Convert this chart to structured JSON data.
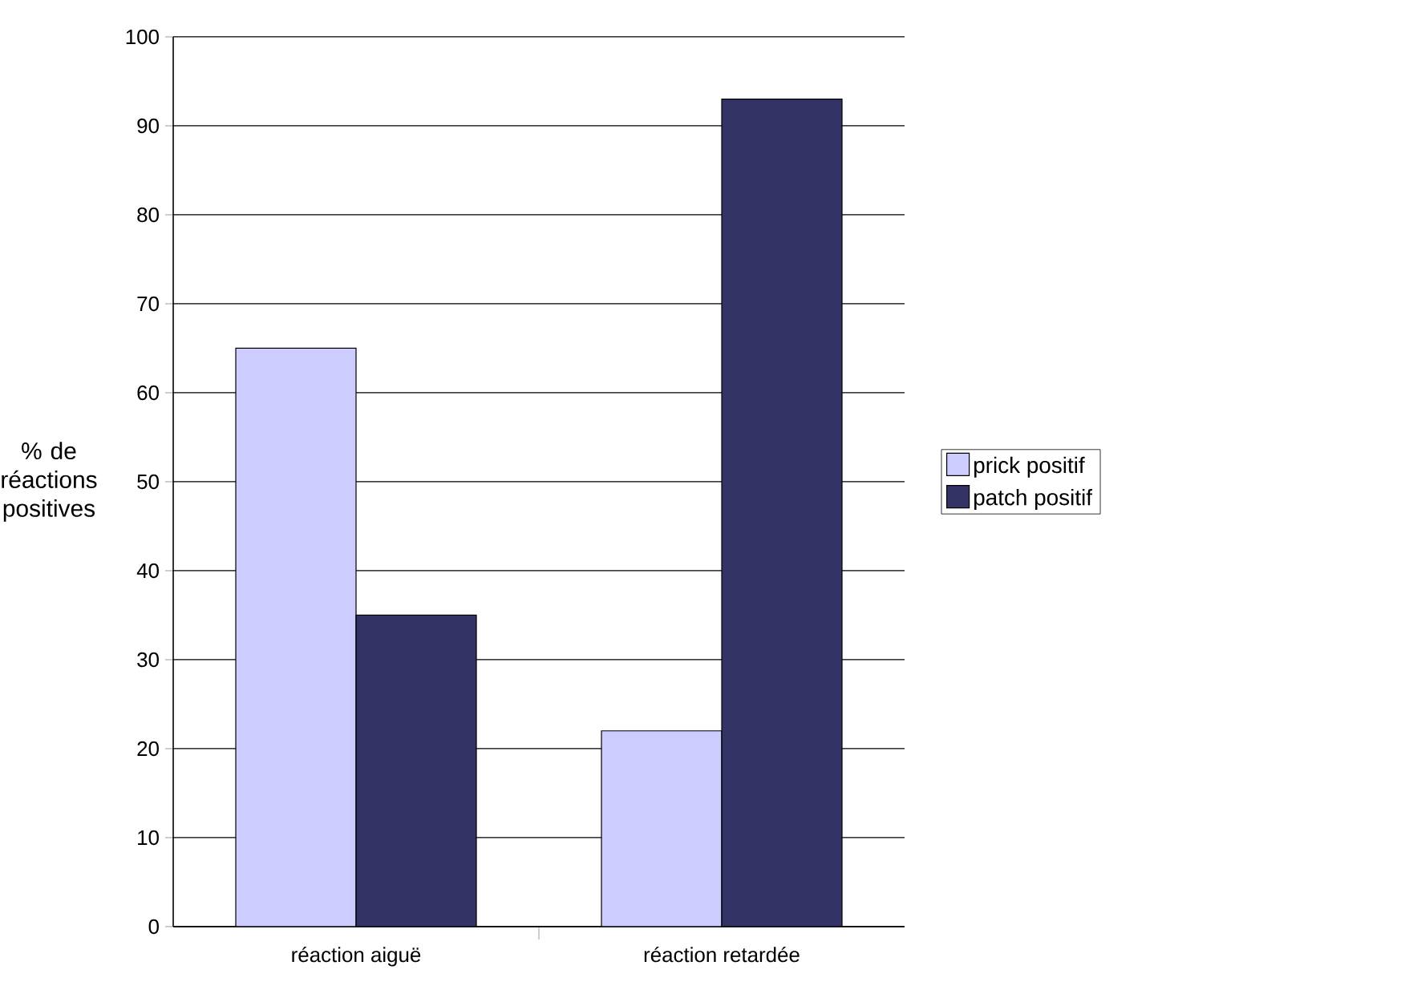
{
  "chart_data": {
    "type": "bar",
    "ylabel": "% de réactions positives",
    "categories": [
      "réaction aiguë",
      "réaction retardée"
    ],
    "series": [
      {
        "name": "prick positif",
        "color": "#ccccff",
        "values": [
          65,
          22
        ]
      },
      {
        "name": "patch positif",
        "color": "#333366",
        "values": [
          35,
          93
        ]
      }
    ],
    "ylim": [
      0,
      100
    ],
    "yticks": [
      0,
      10,
      20,
      30,
      40,
      50,
      60,
      70,
      80,
      90,
      100
    ],
    "grid": "y",
    "legend": "right"
  }
}
